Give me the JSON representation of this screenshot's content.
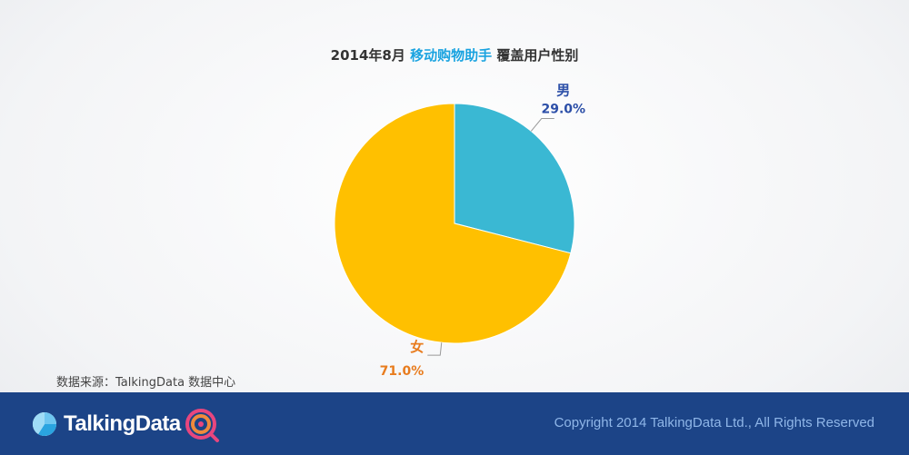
{
  "title": {
    "prefix": "2014年8月",
    "app_name": "移动购物助手",
    "suffix": "覆盖用户性别"
  },
  "chart_data": {
    "type": "pie",
    "title": "2014年8月 移动购物助手 覆盖用户性别",
    "slices": [
      {
        "label": "男",
        "value": 29.0,
        "value_label": "29.0%",
        "color": "#3ab8d3",
        "label_color": "#2c4fa8"
      },
      {
        "label": "女",
        "value": 71.0,
        "value_label": "71.0%",
        "color": "#ffc000",
        "label_color": "#e87c1e"
      }
    ]
  },
  "source": "数据来源：TalkingData 数据中心",
  "footer": {
    "logo_text": "TalkingData",
    "copyright": "Copyright 2014 TalkingData Ltd., All Rights Reserved"
  },
  "colors": {
    "footer_bg": "#1c4487",
    "title_highlight": "#1aa3e0"
  }
}
